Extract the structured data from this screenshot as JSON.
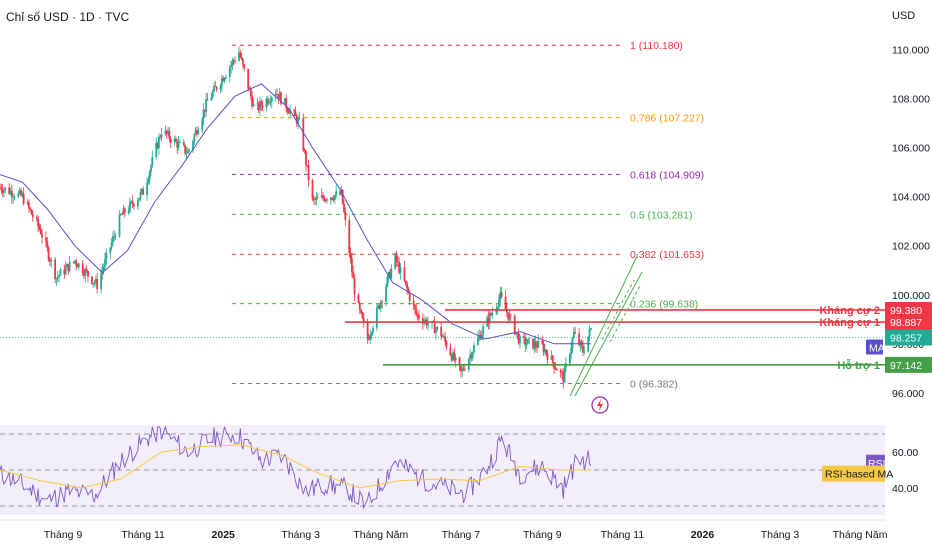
{
  "header": {
    "title": "Chỉ số USD · 1D · TVC",
    "currency": "USD"
  },
  "chart_data": [
    {
      "type": "candlestick",
      "title": "Chỉ số USD · 1D · TVC",
      "ylabel": "USD",
      "ylim": [
        95.3,
        110.8
      ],
      "y_ticks": [
        "96.000",
        "98.000",
        "100.000",
        "102.000",
        "104.000",
        "106.000",
        "108.000",
        "110.000"
      ],
      "y_tick_values": [
        96,
        98,
        100,
        102,
        104,
        106,
        108,
        110
      ],
      "x_ticks": [
        "Tháng 9",
        "Tháng 11",
        "2025",
        "Tháng 3",
        "Tháng Năm",
        "Tháng 7",
        "Tháng 9",
        "Tháng 11",
        "2026",
        "Tháng 3",
        "Tháng Năm"
      ],
      "x_tick_dates": [
        "2024-09-01",
        "2024-11-01",
        "2025-01-01",
        "2025-03-01",
        "2025-05-01",
        "2025-07-01",
        "2025-09-01",
        "2025-11-01",
        "2026-01-01",
        "2026-03-01",
        "2026-05-01"
      ],
      "xlim": [
        "2024-07-15",
        "2026-05-20"
      ],
      "price_path": [
        [
          "2024-07-15",
          104.4
        ],
        [
          "2024-08-01",
          104.0
        ],
        [
          "2024-08-15",
          102.6
        ],
        [
          "2024-08-27",
          100.7
        ],
        [
          "2024-09-10",
          101.4
        ],
        [
          "2024-09-27",
          100.4
        ],
        [
          "2024-10-15",
          103.2
        ],
        [
          "2024-11-01",
          104.2
        ],
        [
          "2024-11-15",
          106.7
        ],
        [
          "2024-12-05",
          105.8
        ],
        [
          "2024-12-20",
          107.9
        ],
        [
          "2025-01-13",
          109.9
        ],
        [
          "2025-01-25",
          107.5
        ],
        [
          "2025-02-10",
          108.3
        ],
        [
          "2025-02-28",
          107.0
        ],
        [
          "2025-03-10",
          103.8
        ],
        [
          "2025-03-20",
          104.0
        ],
        [
          "2025-04-01",
          104.1
        ],
        [
          "2025-04-12",
          99.8
        ],
        [
          "2025-04-21",
          98.2
        ],
        [
          "2025-05-12",
          101.5
        ],
        [
          "2025-05-28",
          99.2
        ],
        [
          "2025-06-15",
          98.5
        ],
        [
          "2025-07-01",
          96.8
        ],
        [
          "2025-07-15",
          98.3
        ],
        [
          "2025-07-31",
          99.9
        ],
        [
          "2025-08-15",
          98.1
        ],
        [
          "2025-09-01",
          97.9
        ],
        [
          "2025-09-17",
          96.6
        ],
        [
          "2025-09-25",
          98.4
        ],
        [
          "2025-10-02",
          97.7
        ],
        [
          "2025-10-08",
          98.6
        ]
      ],
      "ma_path": [
        [
          "2024-07-15",
          104.9
        ],
        [
          "2024-08-01",
          104.6
        ],
        [
          "2024-08-20",
          103.5
        ],
        [
          "2024-09-10",
          102.0
        ],
        [
          "2024-10-01",
          100.9
        ],
        [
          "2024-10-20",
          101.8
        ],
        [
          "2024-11-10",
          103.8
        ],
        [
          "2024-12-01",
          105.3
        ],
        [
          "2024-12-20",
          106.8
        ],
        [
          "2025-01-10",
          108.1
        ],
        [
          "2025-01-30",
          108.6
        ],
        [
          "2025-02-20",
          107.6
        ],
        [
          "2025-03-10",
          106.0
        ],
        [
          "2025-03-31",
          104.3
        ],
        [
          "2025-04-20",
          102.3
        ],
        [
          "2025-05-10",
          100.5
        ],
        [
          "2025-06-01",
          99.8
        ],
        [
          "2025-06-25",
          98.8
        ],
        [
          "2025-07-20",
          98.2
        ],
        [
          "2025-08-15",
          98.5
        ],
        [
          "2025-09-10",
          98.0
        ],
        [
          "2025-10-08",
          98.0
        ]
      ],
      "fibonacci": [
        {
          "ratio": "0",
          "value": 96.382,
          "label": "0 (96.382)",
          "color": "#787b86"
        },
        {
          "ratio": "0.236",
          "value": 99.638,
          "label": "0.236 (99.638)",
          "color": "#4caf50"
        },
        {
          "ratio": "0.382",
          "value": 101.653,
          "label": "0.382 (101.653)",
          "color": "#f23645"
        },
        {
          "ratio": "0.5",
          "value": 103.281,
          "label": "0.5 (103.281)",
          "color": "#4caf50"
        },
        {
          "ratio": "0.618",
          "value": 104.909,
          "label": "0.618 (104.909)",
          "color": "#9c27b0"
        },
        {
          "ratio": "0.786",
          "value": 107.227,
          "label": "0.786 (107.227)",
          "color": "#ff9800"
        },
        {
          "ratio": "1",
          "value": 110.18,
          "label": "1 (110.180)",
          "color": "#f23645"
        }
      ],
      "levels": [
        {
          "label": "Kháng cự 2",
          "value": 99.38,
          "tag": "99.380",
          "color": "#f23645"
        },
        {
          "label": "Kháng cự 1",
          "value": 98.887,
          "tag": "98.887",
          "color": "#f23645"
        },
        {
          "label": "Hỗ trợ 1",
          "value": 97.142,
          "tag": "97.142",
          "color": "#43a047"
        }
      ],
      "last_price": {
        "value": 98.257,
        "tag": "98.257",
        "color": "#22ab94"
      },
      "ma_badge": "MA",
      "colors": {
        "up": "#22ab94",
        "down": "#f23645",
        "ma": "#5b4fcf"
      }
    },
    {
      "type": "line",
      "series_names": [
        "RSI",
        "RSI-based MA"
      ],
      "ylim": [
        25,
        75
      ],
      "y_ticks": [
        "40.00",
        "60.00"
      ],
      "y_tick_values": [
        40,
        60
      ],
      "bands": [
        30,
        50,
        70
      ],
      "rsi_path": [
        [
          "2024-07-15",
          48
        ],
        [
          "2024-08-01",
          42
        ],
        [
          "2024-08-20",
          33
        ],
        [
          "2024-09-05",
          38
        ],
        [
          "2024-09-25",
          36
        ],
        [
          "2024-10-15",
          55
        ],
        [
          "2024-11-05",
          68
        ],
        [
          "2024-11-15",
          72
        ],
        [
          "2024-12-05",
          60
        ],
        [
          "2024-12-25",
          68
        ],
        [
          "2025-01-12",
          70
        ],
        [
          "2025-01-30",
          55
        ],
        [
          "2025-02-15",
          58
        ],
        [
          "2025-03-05",
          38
        ],
        [
          "2025-03-20",
          42
        ],
        [
          "2025-04-05",
          40
        ],
        [
          "2025-04-20",
          30
        ],
        [
          "2025-05-12",
          55
        ],
        [
          "2025-06-01",
          45
        ],
        [
          "2025-06-20",
          40
        ],
        [
          "2025-07-05",
          37
        ],
        [
          "2025-07-20",
          50
        ],
        [
          "2025-08-01",
          67
        ],
        [
          "2025-08-15",
          48
        ],
        [
          "2025-09-01",
          52
        ],
        [
          "2025-09-17",
          40
        ],
        [
          "2025-09-28",
          56
        ],
        [
          "2025-10-08",
          55
        ]
      ],
      "rsi_ma_path": [
        [
          "2024-07-15",
          50
        ],
        [
          "2024-08-15",
          44
        ],
        [
          "2024-09-15",
          40
        ],
        [
          "2024-10-15",
          45
        ],
        [
          "2024-11-15",
          60
        ],
        [
          "2024-12-15",
          63
        ],
        [
          "2025-01-15",
          64
        ],
        [
          "2025-02-15",
          58
        ],
        [
          "2025-03-15",
          48
        ],
        [
          "2025-04-15",
          40
        ],
        [
          "2025-05-15",
          44
        ],
        [
          "2025-06-15",
          45
        ],
        [
          "2025-07-15",
          44
        ],
        [
          "2025-08-15",
          52
        ],
        [
          "2025-09-15",
          50
        ],
        [
          "2025-10-08",
          50
        ]
      ],
      "rsi_badge": "RSI",
      "rsi_ma_badge": "RSI-based MA",
      "colors": {
        "rsi": "#7e57c2",
        "rsi_ma": "#f5c842",
        "band": "#ede7f6"
      }
    }
  ]
}
